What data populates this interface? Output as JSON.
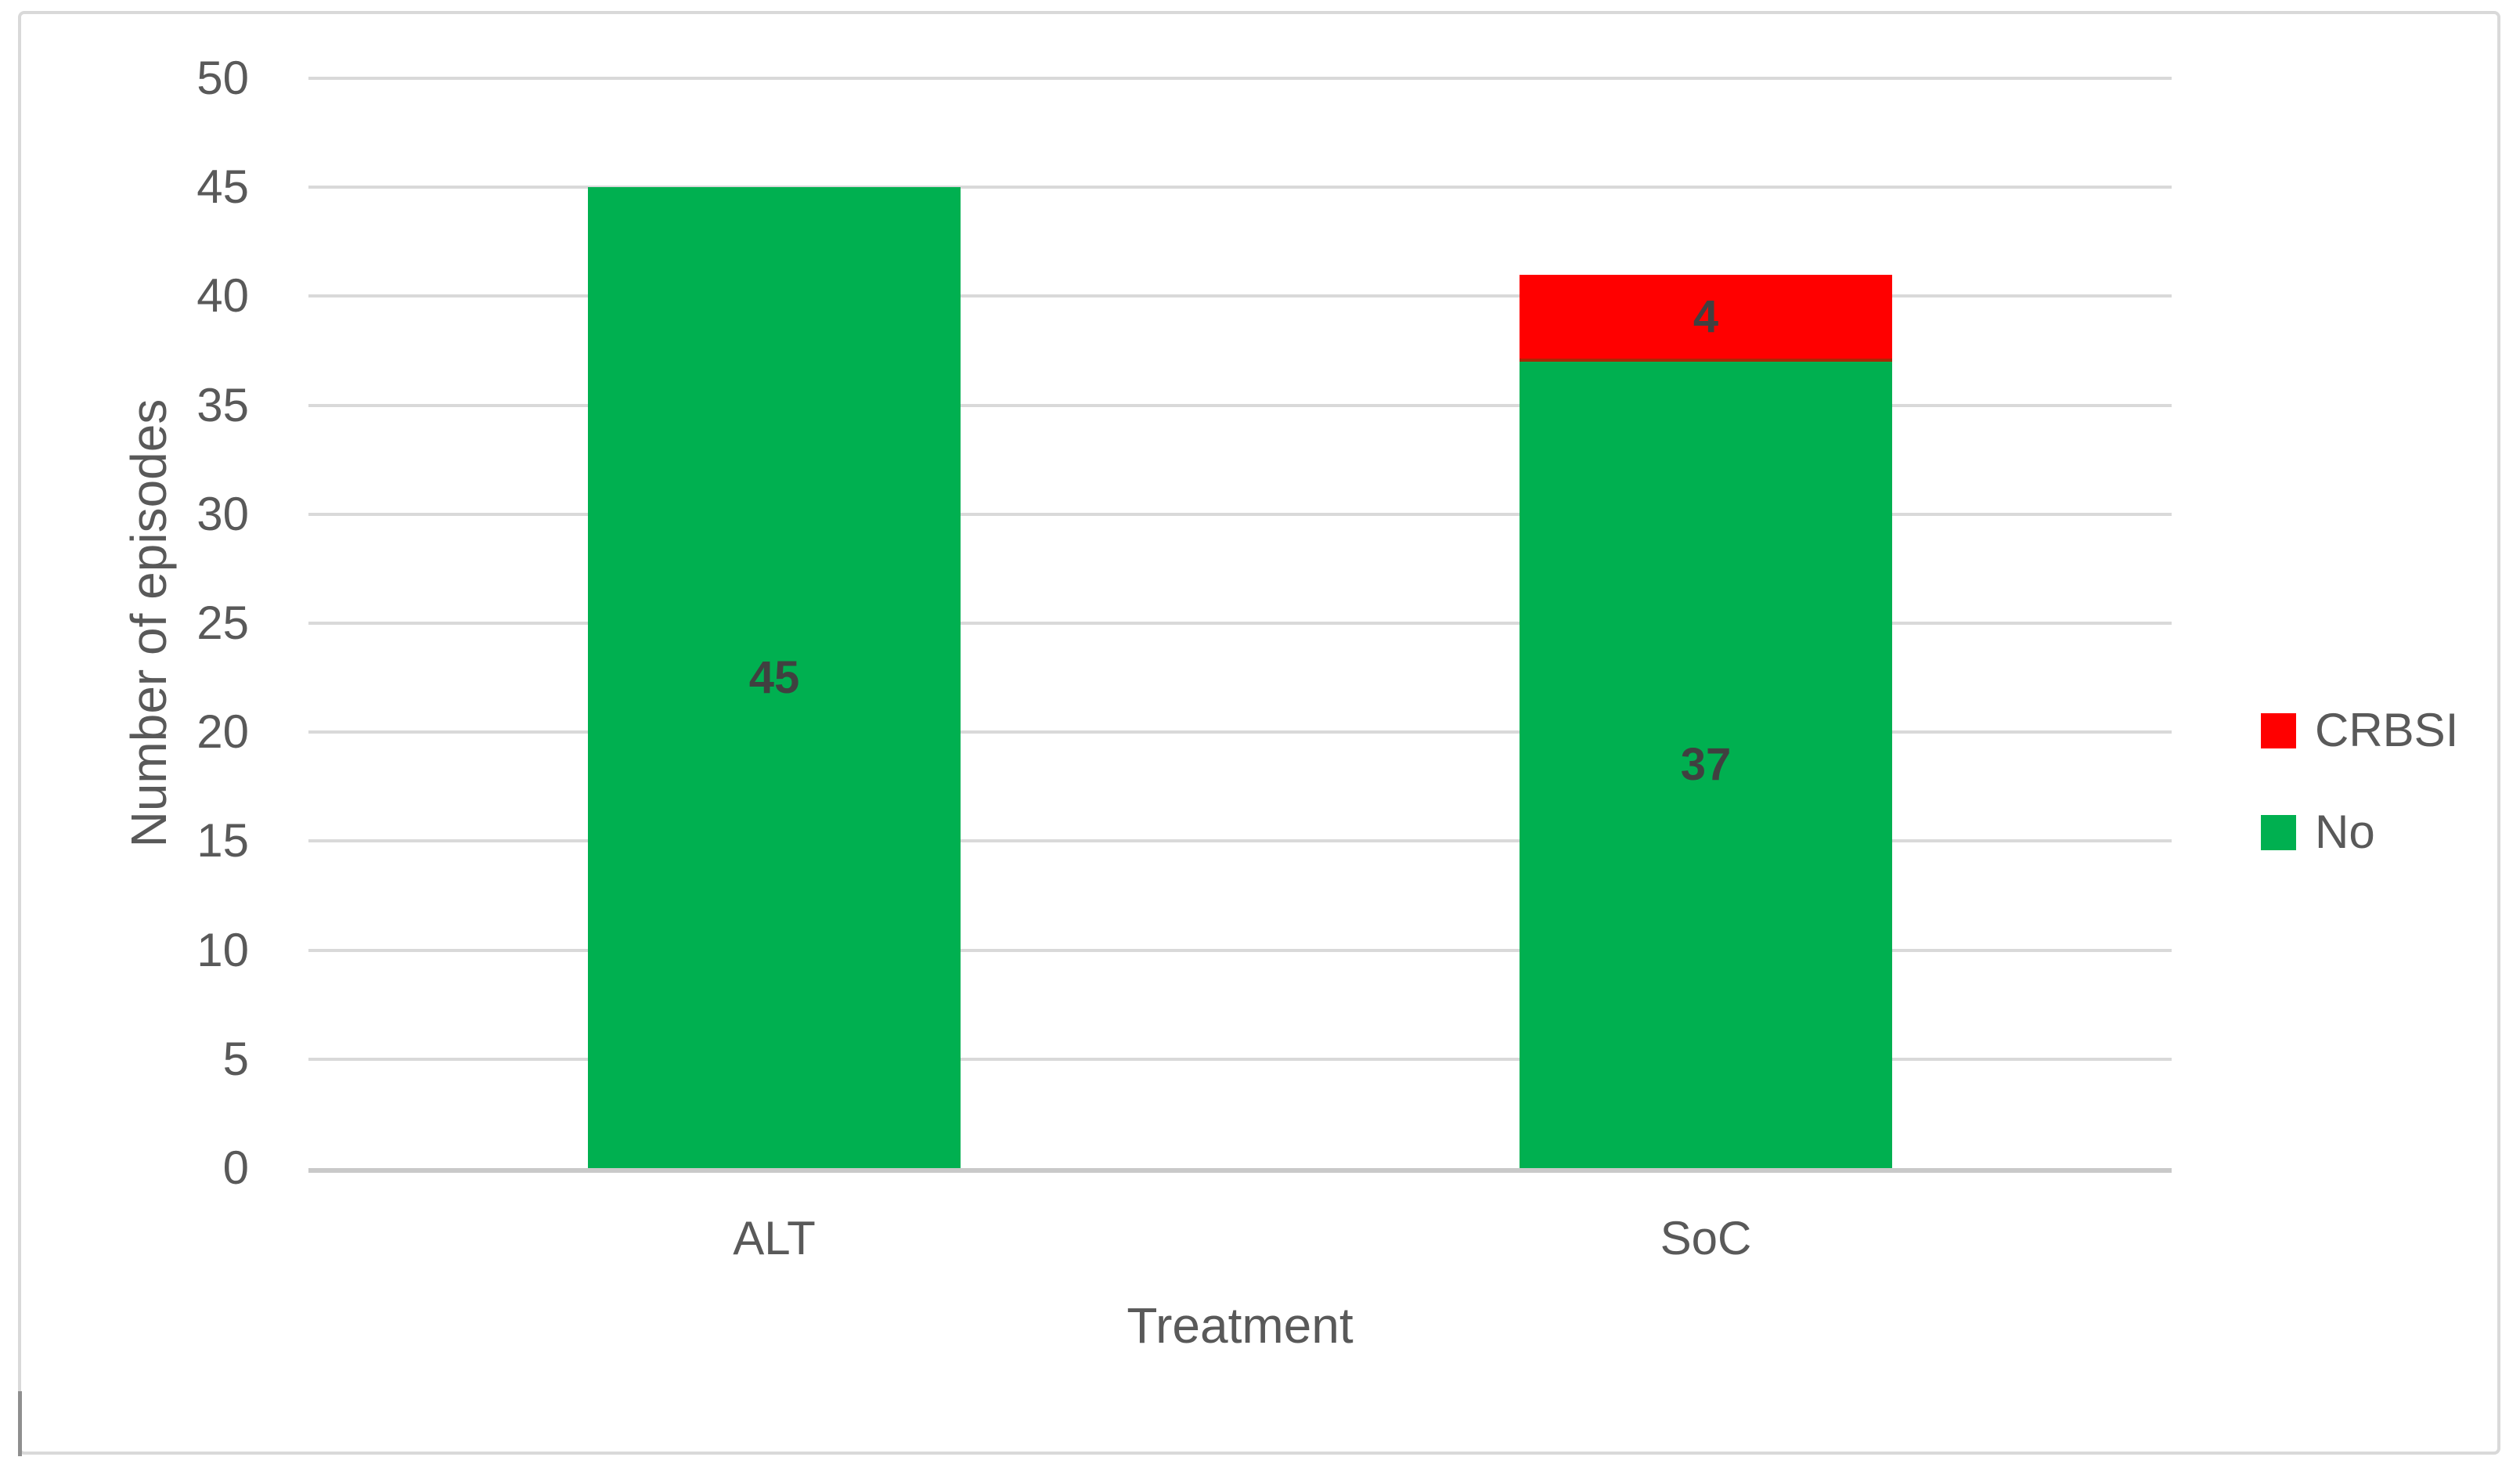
{
  "chart_data": {
    "type": "bar",
    "stacked": true,
    "title": "",
    "xlabel": "Treatment",
    "ylabel": "Number of episodes",
    "categories": [
      "ALT",
      "SoC"
    ],
    "series": [
      {
        "name": "No",
        "color": "#00B050",
        "values": [
          45,
          37
        ]
      },
      {
        "name": "CRBSI",
        "color": "#FF0000",
        "values": [
          0,
          4
        ]
      }
    ],
    "data_labels_shown": true,
    "ylim": [
      0,
      50
    ],
    "ytick_step": 5,
    "grid": true,
    "legend_position": "right",
    "legend": [
      {
        "label": "CRBSI",
        "color": "#FF0000"
      },
      {
        "label": "No",
        "color": "#00B050"
      }
    ]
  },
  "colors": {
    "gridline": "#d9d9d9",
    "axis_line": "#c9c9c9",
    "tick_text": "#595959",
    "data_label_text": "#404040",
    "frame_border": "#d9d9d9",
    "background": "#ffffff"
  }
}
